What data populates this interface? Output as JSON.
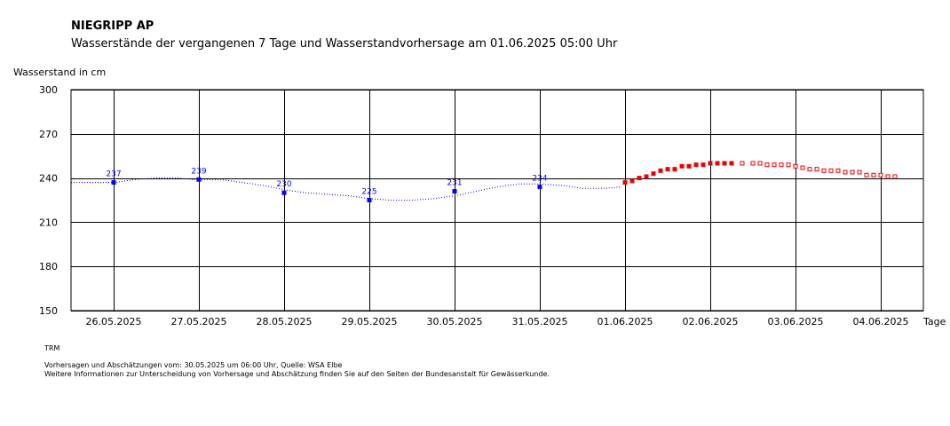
{
  "chart_data": {
    "type": "scatter",
    "title": "NIEGRIPP AP",
    "subtitle": "Wasserstände der vergangenen 7 Tage und Wasserstandvorhersage am 01.06.2025 05:00 Uhr",
    "ylabel": "Wasserstand in cm",
    "xlabel": "Tage",
    "ylim": [
      150,
      300
    ],
    "yticks": [
      150,
      180,
      210,
      240,
      270,
      300
    ],
    "xlim": [
      "25.05.2025 12:00",
      "04.06.2025 12:00"
    ],
    "x_tick_labels": [
      "26.05.2025",
      "27.05.2025",
      "28.05.2025",
      "29.05.2025",
      "30.05.2025",
      "31.05.2025",
      "01.06.2025",
      "02.06.2025",
      "03.06.2025",
      "04.06.2025"
    ],
    "grid": true,
    "colors": {
      "measured": "#0000ff",
      "forecast": "#ee0000",
      "estimate": "#ee0000",
      "frame": "#000000"
    },
    "series": [
      {
        "role": "daily-values",
        "x": [
          "26.05.2025 00:00",
          "27.05.2025 00:00",
          "28.05.2025 00:00",
          "29.05.2025 00:00",
          "30.05.2025 00:00",
          "31.05.2025 00:00"
        ],
        "values": [
          237,
          239,
          230,
          225,
          231,
          234
        ],
        "labels": [
          "237",
          "239",
          "230",
          "225",
          "231",
          "234"
        ]
      },
      {
        "role": "measured-line",
        "x": [
          "25.05.2025 12:00",
          "25.05.2025 18:00",
          "26.05.2025 00:00",
          "26.05.2025 03:00",
          "26.05.2025 06:00",
          "26.05.2025 12:00",
          "26.05.2025 18:00",
          "26.05.2025 22:00",
          "27.05.2025 00:00",
          "27.05.2025 06:00",
          "27.05.2025 12:00",
          "27.05.2025 18:00",
          "28.05.2025 00:00",
          "28.05.2025 06:00",
          "28.05.2025 12:00",
          "28.05.2025 18:00",
          "29.05.2025 00:00",
          "29.05.2025 06:00",
          "29.05.2025 12:00",
          "29.05.2025 18:00",
          "30.05.2025 00:00",
          "30.05.2025 06:00",
          "30.05.2025 12:00",
          "30.05.2025 18:00",
          "31.05.2025 00:00",
          "31.05.2025 06:00",
          "31.05.2025 12:00",
          "31.05.2025 18:00",
          "31.05.2025 23:00"
        ],
        "values": [
          237,
          237,
          237,
          238,
          239,
          240,
          240,
          239,
          239,
          239,
          237,
          235,
          232,
          230,
          229,
          228,
          226,
          225,
          225,
          226,
          228,
          231,
          234,
          236,
          236,
          235,
          233,
          233,
          234
        ]
      },
      {
        "role": "forecast",
        "x": [
          "01.06.2025 00:00",
          "01.06.2025 02:00",
          "01.06.2025 04:00",
          "01.06.2025 06:00",
          "01.06.2025 08:00",
          "01.06.2025 10:00",
          "01.06.2025 12:00",
          "01.06.2025 14:00",
          "01.06.2025 16:00",
          "01.06.2025 18:00",
          "01.06.2025 20:00",
          "01.06.2025 22:00",
          "02.06.2025 00:00",
          "02.06.2025 02:00",
          "02.06.2025 04:00",
          "02.06.2025 06:00"
        ],
        "values": [
          237,
          238,
          240,
          241,
          243,
          245,
          246,
          246,
          248,
          248,
          249,
          249,
          250,
          250,
          250,
          250
        ]
      },
      {
        "role": "estimate",
        "x": [
          "02.06.2025 09:00",
          "02.06.2025 12:00",
          "02.06.2025 14:00",
          "02.06.2025 16:00",
          "02.06.2025 18:00",
          "02.06.2025 20:00",
          "02.06.2025 22:00",
          "03.06.2025 00:00",
          "03.06.2025 02:00",
          "03.06.2025 04:00",
          "03.06.2025 06:00",
          "03.06.2025 08:00",
          "03.06.2025 10:00",
          "03.06.2025 12:00",
          "03.06.2025 14:00",
          "03.06.2025 16:00",
          "03.06.2025 18:00",
          "03.06.2025 20:00",
          "03.06.2025 22:00",
          "04.06.2025 00:00",
          "04.06.2025 02:00",
          "04.06.2025 04:00"
        ],
        "values": [
          250,
          250,
          250,
          249,
          249,
          249,
          249,
          248,
          247,
          246,
          246,
          245,
          245,
          245,
          244,
          244,
          244,
          242,
          242,
          242,
          241,
          241
        ]
      }
    ]
  },
  "footer": {
    "code": "TRM",
    "line1": "Vorhersagen und Abschätzungen vom: 30.05.2025 um 06:00 Uhr, Quelle: WSA Elbe",
    "line2": "Weitere Informationen zur Unterscheidung von Vorhersage und Abschätzung finden Sie auf den Seiten der Bundesanstalt für Gewässerkunde."
  }
}
